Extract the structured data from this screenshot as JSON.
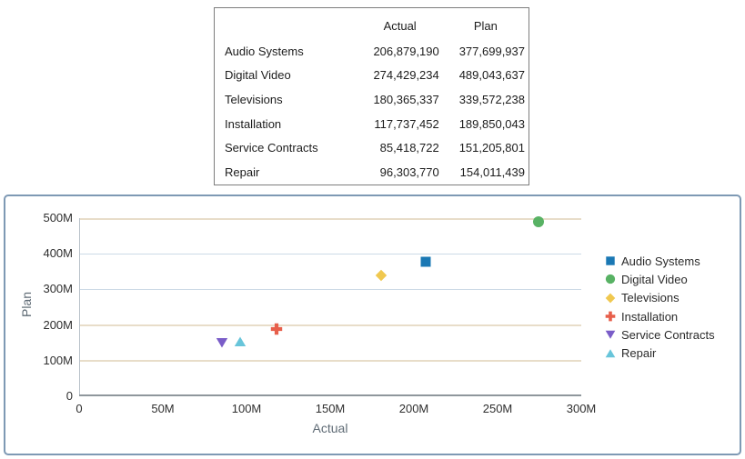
{
  "table": {
    "headers": {
      "category": "",
      "actual": "Actual",
      "plan": "Plan"
    },
    "rows": [
      {
        "category": "Audio Systems",
        "actual": "206,879,190",
        "plan": "377,699,937"
      },
      {
        "category": "Digital Video",
        "actual": "274,429,234",
        "plan": "489,043,637"
      },
      {
        "category": "Televisions",
        "actual": "180,365,337",
        "plan": "339,572,238"
      },
      {
        "category": "Installation",
        "actual": "117,737,452",
        "plan": "189,850,043"
      },
      {
        "category": "Service Contracts",
        "actual": "85,418,722",
        "plan": "151,205,801"
      },
      {
        "category": "Repair",
        "actual": "96,303,770",
        "plan": "154,011,439"
      }
    ]
  },
  "chart_data": {
    "type": "scatter",
    "title": "",
    "xlabel": "Actual",
    "ylabel": "Plan",
    "xlim": [
      0,
      300000000
    ],
    "ylim": [
      0,
      500000000
    ],
    "grid": true,
    "legend_position": "right",
    "x_ticks": [
      {
        "value": 0,
        "label": "0"
      },
      {
        "value": 50000000,
        "label": "50M"
      },
      {
        "value": 100000000,
        "label": "100M"
      },
      {
        "value": 150000000,
        "label": "150M"
      },
      {
        "value": 200000000,
        "label": "200M"
      },
      {
        "value": 250000000,
        "label": "250M"
      },
      {
        "value": 300000000,
        "label": "300M"
      }
    ],
    "y_ticks": [
      {
        "value": 0,
        "label": "0"
      },
      {
        "value": 100000000,
        "label": "100M"
      },
      {
        "value": 200000000,
        "label": "200M"
      },
      {
        "value": 300000000,
        "label": "300M"
      },
      {
        "value": 400000000,
        "label": "400M"
      },
      {
        "value": 500000000,
        "label": "500M"
      }
    ],
    "gridlines": [
      {
        "value": 100000000,
        "color": "#e8ddc9",
        "weight": 2
      },
      {
        "value": 200000000,
        "color": "#e8ddc9",
        "weight": 2
      },
      {
        "value": 300000000,
        "color": "#ccdae6",
        "weight": 1
      },
      {
        "value": 400000000,
        "color": "#ccdae6",
        "weight": 1
      },
      {
        "value": 500000000,
        "color": "#e8ddc9",
        "weight": 2
      }
    ],
    "series": [
      {
        "name": "Audio Systems",
        "shape": "square",
        "color": "#1a78b4",
        "x": 206879190,
        "y": 377699937
      },
      {
        "name": "Digital Video",
        "shape": "circle",
        "color": "#58b264",
        "x": 274429234,
        "y": 489043637
      },
      {
        "name": "Televisions",
        "shape": "diamond",
        "color": "#f0c84f",
        "x": 180365337,
        "y": 339572238
      },
      {
        "name": "Installation",
        "shape": "plus",
        "color": "#e75f4b",
        "x": 117737452,
        "y": 189850043
      },
      {
        "name": "Service Contracts",
        "shape": "triangle-down",
        "color": "#7a5dc8",
        "x": 85418722,
        "y": 151205801
      },
      {
        "name": "Repair",
        "shape": "triangle-up",
        "color": "#68c5da",
        "x": 96303770,
        "y": 154011439
      }
    ]
  },
  "colors": {
    "panel_border": "#7e99b4",
    "table_border": "#7d7d7d",
    "axis_title": "#5f6b75",
    "tick_label": "#2e2e2e",
    "y_axis_line": "#b9c2c9",
    "x_axis_line": "#8f979c",
    "legend_text": "#2a2a2a"
  }
}
